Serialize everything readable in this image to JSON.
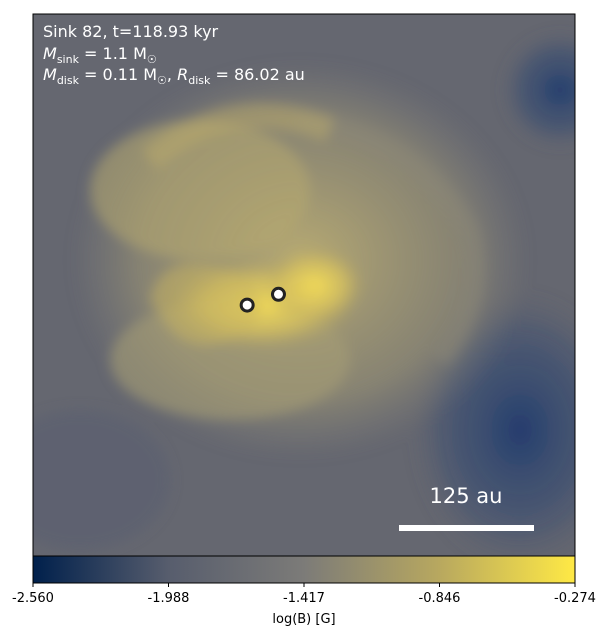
{
  "chart_data": {
    "type": "heatmap",
    "annotations": {
      "line1": "Sink 82, t=118.93 kyr",
      "msink_sym": "M",
      "msink_sub": "sink",
      "msink_val": " = 1.1 M",
      "msink_unit_sym": "☉",
      "mdisk_sym": "M",
      "mdisk_sub": "disk",
      "mdisk_val": " = 0.11 M",
      "mdisk_unit_sym": "☉",
      "mdisk_sep": ", ",
      "rdisk_sym": "R",
      "rdisk_sub": "disk",
      "rdisk_val": " = 86.02 au"
    },
    "scale_bar": {
      "label": "125 au",
      "length_au": 125
    },
    "colorbar": {
      "label": "log(B) [G]",
      "ticks": [
        "-2.560",
        "-1.988",
        "-1.417",
        "-0.846",
        "-0.274"
      ],
      "min": -2.56,
      "max": -0.274,
      "colormap": [
        "#00204c",
        "#575d6d",
        "#7c7b78",
        "#b8a85f",
        "#ffe945"
      ]
    },
    "sinks": [
      {
        "name": "sink-primary",
        "x_au": -23,
        "y_au": -1
      },
      {
        "name": "sink-companion",
        "x_au": 6,
        "y_au": 9
      }
    ]
  }
}
